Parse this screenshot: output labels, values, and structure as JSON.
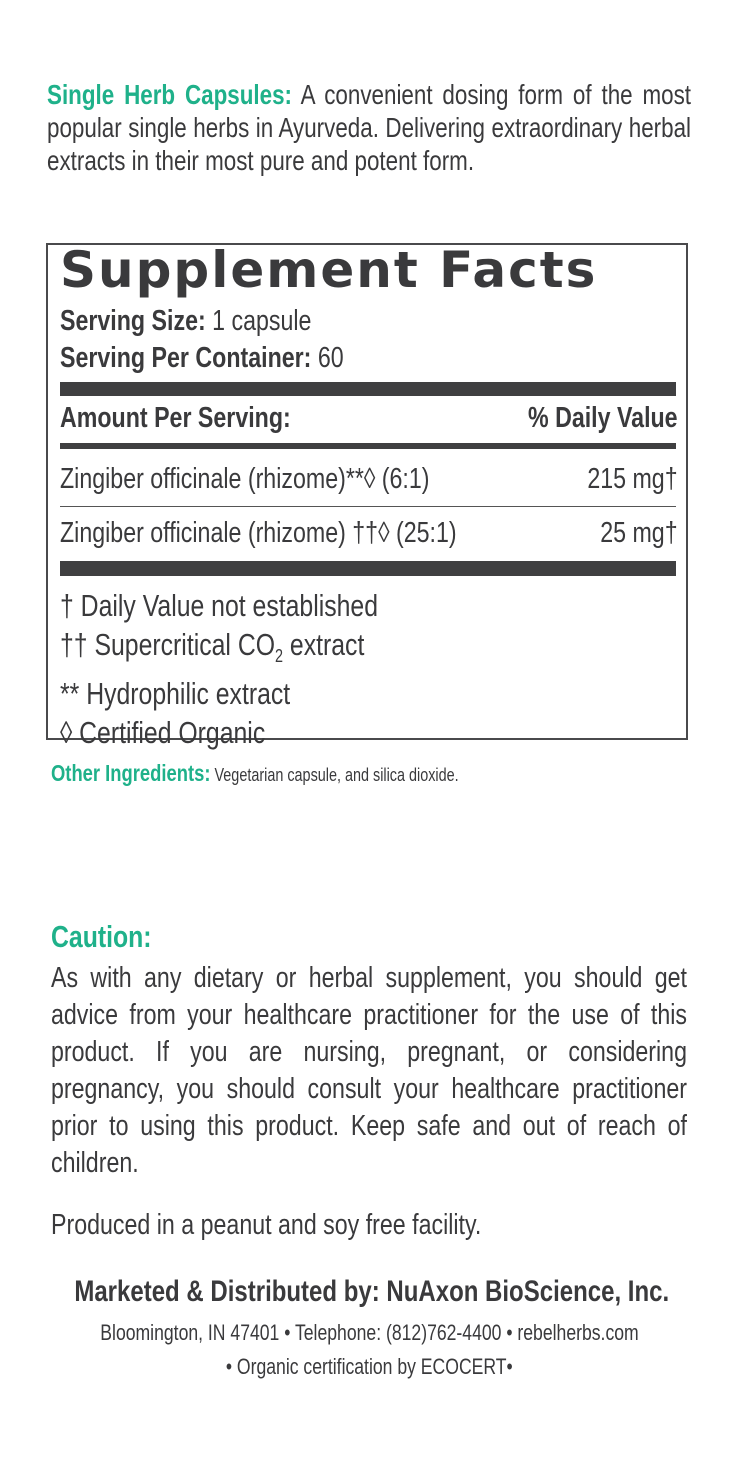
{
  "intro": {
    "label": "Single Herb Capsules:",
    "text": " A convenient dosing form of the most popular single herbs in Ayurveda. Delivering extraordinary herbal extracts in their most pure and potent form."
  },
  "facts": {
    "title": "Supplement Facts",
    "serving_size_label": "Serving Size:",
    "serving_size": " 1 capsule",
    "servings_label": "Serving Per Container:",
    "servings": " 60",
    "amount_header": "Amount Per Serving:",
    "dv_header": "% Daily Value",
    "rows": [
      {
        "name": "Zingiber officinale (rhizome)**◊ (6:1)",
        "amount": "215 mg†"
      },
      {
        "name": "Zingiber officinale (rhizome) ††◊ (25:1)",
        "amount": "25 mg†"
      }
    ],
    "notes": {
      "n1": "† Daily Value not established",
      "n2a": "†† Supercritical CO",
      "n2sub": "2",
      "n2b": " extract",
      "n3": "** Hydrophilic extract",
      "n4": "◊ Certified Organic"
    }
  },
  "other": {
    "label": "Other Ingredients:",
    "text": " Vegetarian capsule, and silica dioxide."
  },
  "caution": {
    "heading": "Caution:",
    "text": "As with any dietary or herbal supplement, you should get advice from your healthcare practitioner for the use of this product. If you are nursing, pregnant, or considering pregnancy, you should consult your healthcare practitioner prior to using this product. Keep safe and out of reach of children."
  },
  "produced": "Produced in a peanut and soy free facility.",
  "footer": {
    "marketed": "Marketed & Distributed by: NuAxon BioScience, Inc.",
    "address": "Bloomington, IN 47401 • Telephone: (812)762-4400 • rebelherbs.com",
    "cert": "• Organic certification by ECOCERT•"
  },
  "colors": {
    "accent": "#1fb18a",
    "text": "#3a3a3c"
  }
}
